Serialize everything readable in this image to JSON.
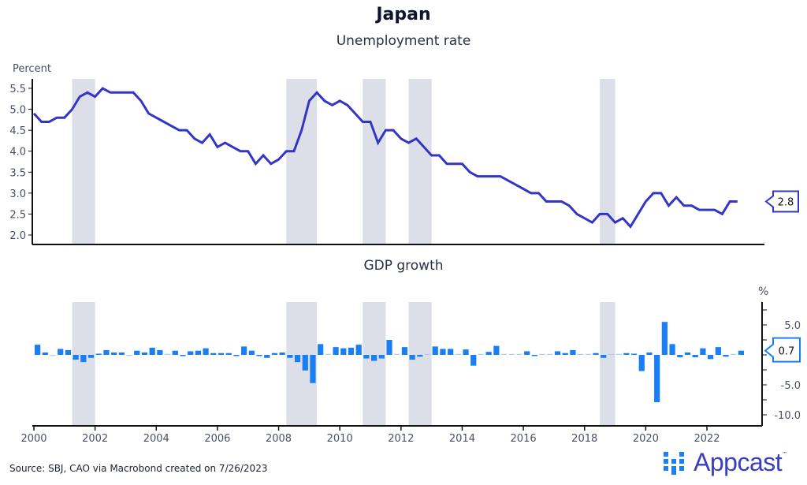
{
  "header": {
    "title": "Japan",
    "subtitle": "Unemployment rate"
  },
  "footer": {
    "source": "Source: SBJ, CAO via Macrobond created on 7/26/2023",
    "logo_text": "Appcast",
    "logo_tm": "™"
  },
  "colors": {
    "line": "#3336c4",
    "bar": "#1a7ff5",
    "recession": "#dcdfe7",
    "axis": "#111111",
    "logo": "#3a3fc0"
  },
  "chart_data": [
    {
      "type": "line",
      "title": "Unemployment rate",
      "ylabel": "Percent",
      "xlabel": "",
      "ylim": [
        2.0,
        5.6
      ],
      "yticks": [
        2.0,
        2.5,
        3.0,
        3.5,
        4.0,
        4.5,
        5.0,
        5.5
      ],
      "ytick_labels": [
        "2.0",
        "2.5",
        "3.0",
        "3.5",
        "4.0",
        "4.5",
        "5.0",
        "5.5"
      ],
      "last_value_label": "2.8",
      "recession_periods": [
        [
          2001.25,
          2002.0
        ],
        [
          2008.25,
          2009.25
        ],
        [
          2010.75,
          2011.5
        ],
        [
          2012.25,
          2013.0
        ],
        [
          2018.5,
          2019.0
        ]
      ],
      "grid": false,
      "x": [
        2000.0,
        2000.25,
        2000.5,
        2000.75,
        2001.0,
        2001.25,
        2001.5,
        2001.75,
        2002.0,
        2002.25,
        2002.5,
        2002.75,
        2003.0,
        2003.25,
        2003.5,
        2003.75,
        2004.0,
        2004.25,
        2004.5,
        2004.75,
        2005.0,
        2005.25,
        2005.5,
        2005.75,
        2006.0,
        2006.25,
        2006.5,
        2006.75,
        2007.0,
        2007.25,
        2007.5,
        2007.75,
        2008.0,
        2008.25,
        2008.5,
        2008.75,
        2009.0,
        2009.25,
        2009.5,
        2009.75,
        2010.0,
        2010.25,
        2010.5,
        2010.75,
        2011.0,
        2011.25,
        2011.5,
        2011.75,
        2012.0,
        2012.25,
        2012.5,
        2012.75,
        2013.0,
        2013.25,
        2013.5,
        2013.75,
        2014.0,
        2014.25,
        2014.5,
        2014.75,
        2015.0,
        2015.25,
        2015.5,
        2015.75,
        2016.0,
        2016.25,
        2016.5,
        2016.75,
        2017.0,
        2017.25,
        2017.5,
        2017.75,
        2018.0,
        2018.25,
        2018.5,
        2018.75,
        2019.0,
        2019.25,
        2019.5,
        2019.75,
        2020.0,
        2020.25,
        2020.5,
        2020.75,
        2021.0,
        2021.25,
        2021.5,
        2021.75,
        2022.0,
        2022.25,
        2022.5,
        2022.75,
        2023.0
      ],
      "values": [
        4.9,
        4.7,
        4.7,
        4.8,
        4.8,
        5.0,
        5.3,
        5.4,
        5.3,
        5.5,
        5.4,
        5.4,
        5.4,
        5.4,
        5.2,
        4.9,
        4.8,
        4.7,
        4.6,
        4.5,
        4.5,
        4.3,
        4.2,
        4.4,
        4.1,
        4.2,
        4.1,
        4.0,
        4.0,
        3.7,
        3.9,
        3.7,
        3.8,
        4.0,
        4.0,
        4.5,
        5.2,
        5.4,
        5.2,
        5.1,
        5.2,
        5.1,
        4.9,
        4.7,
        4.7,
        4.2,
        4.5,
        4.5,
        4.3,
        4.2,
        4.3,
        4.1,
        3.9,
        3.9,
        3.7,
        3.7,
        3.7,
        3.5,
        3.4,
        3.4,
        3.4,
        3.4,
        3.3,
        3.2,
        3.1,
        3.0,
        3.0,
        2.8,
        2.8,
        2.8,
        2.7,
        2.5,
        2.4,
        2.3,
        2.5,
        2.5,
        2.3,
        2.4,
        2.2,
        2.5,
        2.8,
        3.0,
        3.0,
        2.7,
        2.9,
        2.7,
        2.7,
        2.6,
        2.6,
        2.6,
        2.5,
        2.8,
        2.8
      ]
    },
    {
      "type": "bar",
      "title": "GDP growth",
      "ylabel": "%",
      "xlabel": "",
      "ylim": [
        -11.0,
        8.0
      ],
      "yticks": [
        5.0,
        -5.0,
        -10.0
      ],
      "ytick_labels": [
        "5.0",
        "-5.0",
        "-10.0"
      ],
      "minor_yticks": [
        7.5,
        2.5,
        0,
        -2.5,
        -7.5
      ],
      "last_value_label": "0.7",
      "xticks": [
        2000,
        2002,
        2004,
        2006,
        2008,
        2010,
        2012,
        2014,
        2016,
        2018,
        2020,
        2022
      ],
      "xtick_labels": [
        "2000",
        "2002",
        "2004",
        "2006",
        "2008",
        "2010",
        "2012",
        "2014",
        "2016",
        "2018",
        "2020",
        "2022"
      ],
      "grid": false,
      "x": [
        2000.0,
        2000.25,
        2000.5,
        2000.75,
        2001.0,
        2001.25,
        2001.5,
        2001.75,
        2002.0,
        2002.25,
        2002.5,
        2002.75,
        2003.0,
        2003.25,
        2003.5,
        2003.75,
        2004.0,
        2004.25,
        2004.5,
        2004.75,
        2005.0,
        2005.25,
        2005.5,
        2005.75,
        2006.0,
        2006.25,
        2006.5,
        2006.75,
        2007.0,
        2007.25,
        2007.5,
        2007.75,
        2008.0,
        2008.25,
        2008.5,
        2008.75,
        2009.0,
        2009.25,
        2009.5,
        2009.75,
        2010.0,
        2010.25,
        2010.5,
        2010.75,
        2011.0,
        2011.25,
        2011.5,
        2011.75,
        2012.0,
        2012.25,
        2012.5,
        2012.75,
        2013.0,
        2013.25,
        2013.5,
        2013.75,
        2014.0,
        2014.25,
        2014.5,
        2014.75,
        2015.0,
        2015.25,
        2015.5,
        2015.75,
        2016.0,
        2016.25,
        2016.5,
        2016.75,
        2017.0,
        2017.25,
        2017.5,
        2017.75,
        2018.0,
        2018.25,
        2018.5,
        2018.75,
        2019.0,
        2019.25,
        2019.5,
        2019.75,
        2020.0,
        2020.25,
        2020.5,
        2020.75,
        2021.0,
        2021.25,
        2021.5,
        2021.75,
        2022.0,
        2022.25,
        2022.5,
        2022.75,
        2023.0
      ],
      "values": [
        1.7,
        0.4,
        -0.1,
        1.0,
        0.8,
        -0.8,
        -1.2,
        -0.5,
        0.2,
        0.8,
        0.4,
        0.4,
        -0.1,
        0.7,
        0.4,
        1.2,
        0.8,
        0.0,
        0.7,
        -0.2,
        0.6,
        0.7,
        1.1,
        0.3,
        0.3,
        0.3,
        -0.2,
        1.4,
        0.7,
        -0.2,
        -0.5,
        0.3,
        0.4,
        -0.5,
        -1.2,
        -2.6,
        -4.7,
        1.8,
        0.1,
        1.3,
        1.1,
        1.2,
        1.7,
        -0.6,
        -1.0,
        -0.6,
        2.5,
        0.1,
        1.3,
        -0.8,
        -0.3,
        0.1,
        1.4,
        1.0,
        1.0,
        0.1,
        0.9,
        -1.8,
        0.1,
        0.5,
        1.5,
        0.1,
        0.1,
        0.1,
        0.6,
        -0.2,
        0.1,
        0.1,
        0.6,
        0.3,
        0.8,
        0.1,
        0.1,
        0.3,
        -0.5,
        0.1,
        0.1,
        0.3,
        0.2,
        -2.7,
        0.4,
        -7.9,
        5.5,
        1.8,
        -0.4,
        0.4,
        -0.4,
        1.1,
        -0.7,
        1.3,
        -0.3,
        0.1,
        0.7
      ]
    }
  ]
}
